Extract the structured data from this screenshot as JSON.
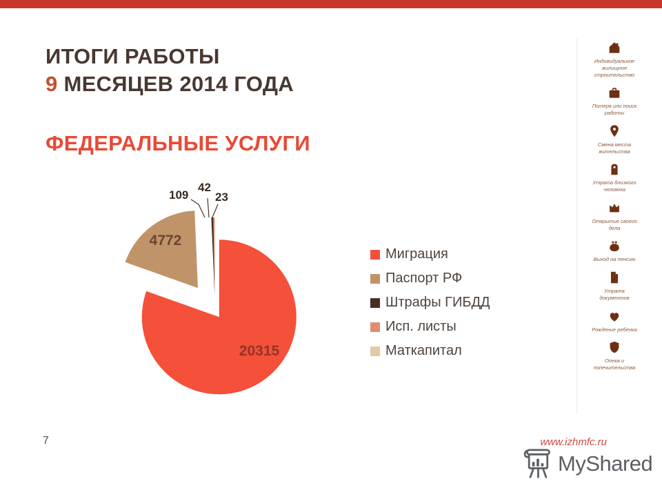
{
  "header": {
    "title_line1": "ИТОГИ РАБОТЫ",
    "title_accent": "9",
    "title_line2": " МЕСЯЦЕВ 2014 ГОДА",
    "subtitle": "ФЕДЕРАЛЬНЫЕ УСЛУГИ"
  },
  "chart_data": {
    "type": "pie",
    "title": "ФЕДЕРАЛЬНЫЕ УСЛУГИ",
    "categories": [
      "Миграция",
      "Паспорт РФ",
      "Штрафы ГИБДД",
      "Исп. листы",
      "Маткапитал"
    ],
    "values": [
      20315,
      4772,
      109,
      42,
      23
    ],
    "colors": [
      "#F4503A",
      "#C09468",
      "#4A2D24",
      "#DF8F70",
      "#E5C9A6"
    ],
    "keys": [
      "migration",
      "passport-rf",
      "gibdd-fines",
      "writs",
      "matkapital"
    ],
    "data_labels": [
      "20315",
      "4772",
      "109",
      "42",
      "23"
    ],
    "legend_position": "right",
    "exploded": true
  },
  "sidebar": {
    "items": [
      {
        "icon": "house",
        "label": "Индивидуальное жилищное строительство"
      },
      {
        "icon": "briefcase",
        "label": "Потеря или поиск работы"
      },
      {
        "icon": "map-pin",
        "label": "Смена места жительства"
      },
      {
        "icon": "memorial",
        "label": "Утрата близкого человека"
      },
      {
        "icon": "crown",
        "label": "Открытие своего дела"
      },
      {
        "icon": "purse",
        "label": "Выход на пенсию"
      },
      {
        "icon": "document",
        "label": "Утрата документов"
      },
      {
        "icon": "heart",
        "label": "Рождение ребенка"
      },
      {
        "icon": "shield",
        "label": "Опека и попечительства"
      }
    ]
  },
  "footer": {
    "page_number": "7",
    "website": "www.izhmfc.ru",
    "watermark": "MyShared"
  },
  "colors": {
    "accent_red": "#E84A36",
    "top_bar_red": "#C9362B",
    "title_brown": "#473830",
    "sidebar_icon_brown": "#6E3014"
  }
}
